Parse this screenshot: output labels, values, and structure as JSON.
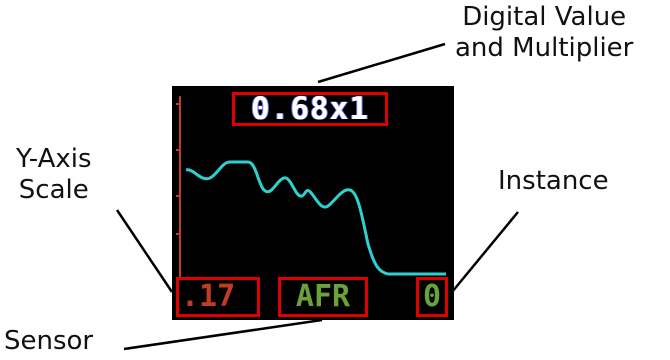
{
  "labels": {
    "digital_value_line1": "Digital Value",
    "digital_value_line2": "and Multiplier",
    "y_axis_line1": "Y-Axis",
    "y_axis_line2": "Scale",
    "instance": "Instance",
    "sensor": "Sensor"
  },
  "screen": {
    "digital_value": "0.68x1",
    "y_axis_scale": ".17",
    "sensor": "AFR",
    "instance": "0"
  },
  "colors": {
    "highlight_box": "#e00000",
    "trace": "#2fd0d0",
    "axis": "#c23b22",
    "sensor_text": "#6aa23a",
    "scale_text": "#c23b22"
  }
}
